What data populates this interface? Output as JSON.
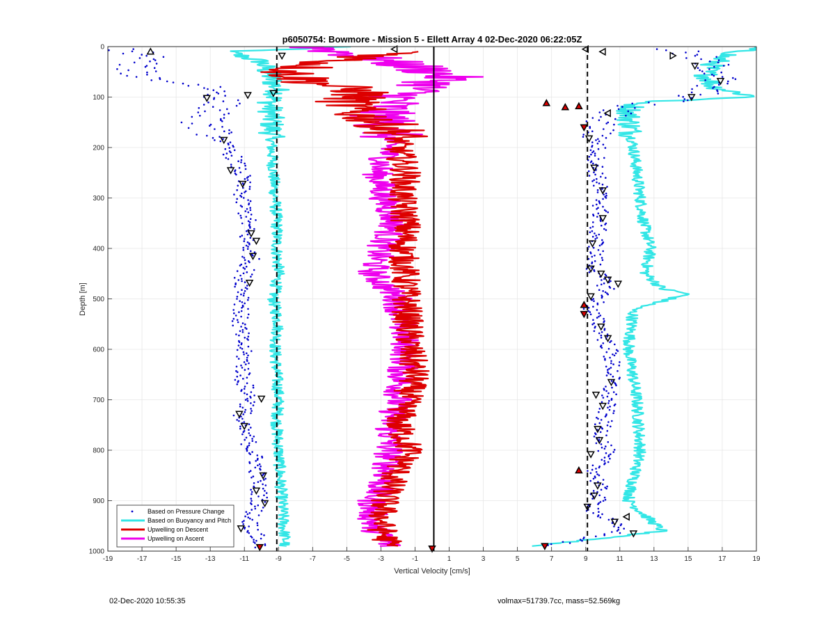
{
  "colors": {
    "pressure": "#0000cc",
    "buoyancy": "#33e6e6",
    "descent": "#dd0000",
    "ascent": "#ee00ee",
    "grid": "#e6e6e6",
    "axis": "#262626"
  },
  "footer": {
    "left": "02-Dec-2020 10:55:35",
    "right": "volmax=51739.7cc, mass=52.569kg"
  },
  "chart_data": {
    "type": "scatter",
    "title": "p6050754: Bowmore - Mission 5 - Ellett Array 4 02-Dec-2020 06:22:05Z",
    "xlabel": "Vertical Velocity [cm/s]",
    "ylabel": "Depth [m]",
    "xlim": [
      -19,
      19
    ],
    "ylim": [
      0,
      1000
    ],
    "y_reversed": true,
    "grid": true,
    "xticks": [
      -19,
      -17,
      -15,
      -13,
      -11,
      -9,
      -7,
      -5,
      -3,
      -1,
      1,
      3,
      5,
      7,
      9,
      11,
      13,
      15,
      17,
      19
    ],
    "xtick_labels": [
      "-19",
      "-17",
      "-15",
      "-13",
      "-11",
      "-9",
      "-7",
      "-5",
      "-3",
      "-1",
      "1",
      "3",
      "5",
      "7",
      "9",
      "11",
      "13",
      "15",
      "17",
      "19"
    ],
    "yticks": [
      0,
      100,
      200,
      300,
      400,
      500,
      600,
      700,
      800,
      900,
      1000
    ],
    "ytick_labels": [
      "0",
      "100",
      "200",
      "300",
      "400",
      "500",
      "600",
      "700",
      "800",
      "900",
      "1000"
    ],
    "legend": {
      "position": "bottom-left",
      "entries": [
        "Based on Pressure Change",
        "Based on Buoyancy and Pitch",
        "Upwelling on Descent",
        "Upwelling on Ascent"
      ]
    },
    "reference_lines": [
      {
        "x": -9.1,
        "style": "dashed"
      },
      {
        "x": 0.1,
        "style": "solid"
      },
      {
        "x": 9.1,
        "style": "dashed"
      }
    ],
    "series": [
      {
        "name": "Based on Pressure Change",
        "style": "dots",
        "groups": [
          {
            "depth": [
              5,
              20,
              40,
              60,
              80,
              100,
              120,
              150,
              180,
              220,
              260,
              300,
              340,
              380,
              420,
              460,
              500,
              540,
              580,
              620,
              660,
              700,
              740,
              780,
              820,
              860,
              900,
              940,
              980,
              995
            ],
            "velocity": [
              -18,
              -16.5,
              -17.5,
              -17,
              -13,
              -12.2,
              -12.5,
              -13.5,
              -12.5,
              -11.6,
              -11.1,
              -11.2,
              -10.8,
              -10.9,
              -10.6,
              -11.1,
              -11.0,
              -11.3,
              -11.2,
              -11.0,
              -11.1,
              -10.6,
              -11.3,
              -10.8,
              -10.3,
              -10.2,
              -10.1,
              -10.7,
              -10.2,
              -10.0
            ]
          },
          {
            "depth": [
              5,
              20,
              40,
              60,
              80,
              100,
              120,
              140,
              160,
              200,
              240,
              280,
              320,
              360,
              400,
              440,
              480,
              520,
              560,
              600,
              640,
              680,
              720,
              760,
              800,
              840,
              880,
              920,
              960,
              990
            ],
            "velocity": [
              14,
              15.5,
              16.5,
              17,
              16,
              15.5,
              11,
              10.3,
              9.8,
              9.7,
              9.6,
              9.8,
              9.9,
              9.7,
              9.6,
              9.5,
              10.3,
              9.3,
              9.9,
              10.4,
              10.6,
              10.4,
              10.2,
              9.9,
              10.2,
              9.6,
              9.8,
              9.5,
              11.2,
              6.8
            ]
          }
        ]
      },
      {
        "name": "Based on Buoyancy and Pitch",
        "style": "line",
        "groups": [
          {
            "depth": [
              0,
              10,
              30,
              60,
              90,
              110,
              150,
              200,
              250,
              300,
              350,
              400,
              450,
              500,
              550,
              600,
              650,
              700,
              750,
              800,
              850,
              900,
              950,
              985,
              990
            ],
            "velocity": [
              -5,
              -12,
              -10,
              -9.5,
              -9,
              -9.5,
              -9.4,
              -9.4,
              -9.3,
              -9.2,
              -9.1,
              -9.1,
              -9.0,
              -9.3,
              -9.0,
              -9.2,
              -9.1,
              -9.0,
              -9.1,
              -9.0,
              -8.9,
              -8.8,
              -8.7,
              -8.6,
              -8.8
            ]
          },
          {
            "depth": [
              0,
              20,
              50,
              80,
              100,
              110,
              130,
              200,
              250,
              300,
              350,
              400,
              450,
              480,
              490,
              520,
              600,
              700,
              800,
              900,
              930,
              960,
              990
            ],
            "velocity": [
              19,
              17,
              16,
              16.5,
              19,
              12,
              11.5,
              11.8,
              12.0,
              12.2,
              12.4,
              12.8,
              12.5,
              13.5,
              15.0,
              11.8,
              11.5,
              12.0,
              12.2,
              11.5,
              12.5,
              13.5,
              6.0
            ]
          }
        ]
      },
      {
        "name": "Upwelling on Descent",
        "style": "line",
        "groups": [
          {
            "depth": [
              10,
              30,
              50,
              70,
              90,
              110,
              130,
              150,
              170,
              200,
              250,
              300,
              350,
              400,
              450,
              500,
              550,
              600,
              650,
              700,
              750,
              800,
              850,
              900,
              950,
              990
            ],
            "velocity": [
              -1,
              -6,
              -8.5,
              -7,
              -4,
              -5,
              -4.5,
              -3,
              -2,
              -2,
              -1.5,
              -1.8,
              -1.5,
              -1.7,
              -1.6,
              -1.5,
              -1.4,
              -1.3,
              -1.0,
              -1.5,
              -2.0,
              -1.3,
              -2.2,
              -2.8,
              -3.0,
              -2.5
            ]
          }
        ]
      },
      {
        "name": "Upwelling on Ascent",
        "style": "line",
        "groups": [
          {
            "depth": [
              0,
              20,
              40,
              60,
              80,
              100,
              130,
              170,
              200,
              250,
              300,
              350,
              400,
              450,
              500,
              550,
              600,
              650,
              700,
              750,
              800,
              850,
              900,
              950,
              990
            ],
            "velocity": [
              -7,
              -4,
              -1,
              1.0,
              -0.5,
              -2,
              -3,
              -2.5,
              -2.5,
              -3.2,
              -2.8,
              -2.2,
              -3.0,
              -3.5,
              -2.0,
              -1.8,
              -1.5,
              -1.8,
              -2.0,
              -2.5,
              -2.5,
              -2.7,
              -3.5,
              -3.5,
              -2.5
            ]
          }
        ]
      }
    ],
    "markers": [
      {
        "depth": 10,
        "velocity": -16.5,
        "shape": "tri-up",
        "fill": "none"
      },
      {
        "depth": 18,
        "velocity": -8.8,
        "shape": "tri-down",
        "fill": "none"
      },
      {
        "depth": 5,
        "velocity": -2.2,
        "shape": "tri-left",
        "fill": "none"
      },
      {
        "depth": 5,
        "velocity": 9.0,
        "shape": "tri-left",
        "fill": "none"
      },
      {
        "depth": 10,
        "velocity": 10.0,
        "shape": "tri-left",
        "fill": "none"
      },
      {
        "depth": 18,
        "velocity": 14.1,
        "shape": "tri-right",
        "fill": "none"
      },
      {
        "depth": 38,
        "velocity": 15.4,
        "shape": "tri-down",
        "fill": "none"
      },
      {
        "depth": 68,
        "velocity": 16.9,
        "shape": "tri-down",
        "fill": "none"
      },
      {
        "depth": 100,
        "velocity": 15.2,
        "shape": "tri-down",
        "fill": "none"
      },
      {
        "depth": 92,
        "velocity": -9.3,
        "shape": "tri-down",
        "fill": "none"
      },
      {
        "depth": 96,
        "velocity": -10.8,
        "shape": "tri-down",
        "fill": "none"
      },
      {
        "depth": 102,
        "velocity": -13.2,
        "shape": "tri-down",
        "fill": "none"
      },
      {
        "depth": 112,
        "velocity": 6.7,
        "shape": "tri-up",
        "fill": "#dd0000"
      },
      {
        "depth": 120,
        "velocity": 7.8,
        "shape": "tri-up",
        "fill": "#dd0000"
      },
      {
        "depth": 118,
        "velocity": 8.6,
        "shape": "tri-up",
        "fill": "#dd0000"
      },
      {
        "depth": 132,
        "velocity": 10.3,
        "shape": "tri-left",
        "fill": "none"
      },
      {
        "depth": 160,
        "velocity": 8.9,
        "shape": "tri-down",
        "fill": "#dd0000"
      },
      {
        "depth": 182,
        "velocity": 9.2,
        "shape": "tri-down",
        "fill": "none"
      },
      {
        "depth": 185,
        "velocity": -12.2,
        "shape": "tri-down",
        "fill": "none"
      },
      {
        "depth": 245,
        "velocity": -11.8,
        "shape": "tri-down",
        "fill": "none"
      },
      {
        "depth": 240,
        "velocity": 9.5,
        "shape": "tri-down",
        "fill": "none"
      },
      {
        "depth": 272,
        "velocity": -11.1,
        "shape": "tri-down",
        "fill": "none"
      },
      {
        "depth": 285,
        "velocity": 10.0,
        "shape": "tri-down",
        "fill": "none"
      },
      {
        "depth": 340,
        "velocity": 10.0,
        "shape": "tri-down",
        "fill": "none"
      },
      {
        "depth": 370,
        "velocity": -10.6,
        "shape": "tri-down",
        "fill": "none"
      },
      {
        "depth": 385,
        "velocity": -10.3,
        "shape": "tri-down",
        "fill": "none"
      },
      {
        "depth": 390,
        "velocity": 9.4,
        "shape": "tri-down",
        "fill": "none"
      },
      {
        "depth": 415,
        "velocity": -10.5,
        "shape": "tri-down",
        "fill": "none"
      },
      {
        "depth": 440,
        "velocity": 9.3,
        "shape": "tri-down",
        "fill": "none"
      },
      {
        "depth": 450,
        "velocity": 9.9,
        "shape": "tri-down",
        "fill": "none"
      },
      {
        "depth": 462,
        "velocity": 10.3,
        "shape": "tri-down",
        "fill": "none"
      },
      {
        "depth": 470,
        "velocity": 10.9,
        "shape": "tri-down",
        "fill": "none"
      },
      {
        "depth": 468,
        "velocity": -10.7,
        "shape": "tri-down",
        "fill": "none"
      },
      {
        "depth": 495,
        "velocity": 9.3,
        "shape": "tri-down",
        "fill": "none"
      },
      {
        "depth": 512,
        "velocity": 8.9,
        "shape": "tri-up",
        "fill": "#dd0000"
      },
      {
        "depth": 530,
        "velocity": 8.9,
        "shape": "tri-down",
        "fill": "#dd0000"
      },
      {
        "depth": 555,
        "velocity": 9.9,
        "shape": "tri-down",
        "fill": "none"
      },
      {
        "depth": 578,
        "velocity": 10.3,
        "shape": "tri-down",
        "fill": "none"
      },
      {
        "depth": 665,
        "velocity": 10.5,
        "shape": "tri-down",
        "fill": "none"
      },
      {
        "depth": 690,
        "velocity": 9.6,
        "shape": "tri-down",
        "fill": "none"
      },
      {
        "depth": 698,
        "velocity": -10.0,
        "shape": "tri-down",
        "fill": "none"
      },
      {
        "depth": 712,
        "velocity": 10.0,
        "shape": "tri-down",
        "fill": "none"
      },
      {
        "depth": 728,
        "velocity": -11.3,
        "shape": "tri-down",
        "fill": "none"
      },
      {
        "depth": 752,
        "velocity": -11.0,
        "shape": "tri-down",
        "fill": "none"
      },
      {
        "depth": 758,
        "velocity": 9.7,
        "shape": "tri-down",
        "fill": "none"
      },
      {
        "depth": 780,
        "velocity": 9.8,
        "shape": "tri-down",
        "fill": "none"
      },
      {
        "depth": 808,
        "velocity": 9.3,
        "shape": "tri-down",
        "fill": "none"
      },
      {
        "depth": 840,
        "velocity": 8.6,
        "shape": "tri-up",
        "fill": "#dd0000"
      },
      {
        "depth": 850,
        "velocity": -9.9,
        "shape": "tri-down",
        "fill": "none"
      },
      {
        "depth": 870,
        "velocity": 9.7,
        "shape": "tri-down",
        "fill": "none"
      },
      {
        "depth": 880,
        "velocity": -10.3,
        "shape": "tri-down",
        "fill": "none"
      },
      {
        "depth": 890,
        "velocity": 9.5,
        "shape": "tri-down",
        "fill": "none"
      },
      {
        "depth": 905,
        "velocity": -9.8,
        "shape": "tri-down",
        "fill": "none"
      },
      {
        "depth": 912,
        "velocity": 9.1,
        "shape": "tri-down",
        "fill": "none"
      },
      {
        "depth": 932,
        "velocity": 11.4,
        "shape": "tri-left",
        "fill": "none"
      },
      {
        "depth": 942,
        "velocity": 10.7,
        "shape": "tri-down",
        "fill": "none"
      },
      {
        "depth": 955,
        "velocity": -11.2,
        "shape": "tri-down",
        "fill": "none"
      },
      {
        "depth": 965,
        "velocity": 11.8,
        "shape": "tri-down",
        "fill": "none"
      },
      {
        "depth": 992,
        "velocity": -10.1,
        "shape": "tri-down",
        "fill": "#dd0000"
      },
      {
        "depth": 990,
        "velocity": 6.6,
        "shape": "tri-down",
        "fill": "#dd0000"
      },
      {
        "depth": 995,
        "velocity": 0.0,
        "shape": "tri-down",
        "fill": "#dd0000"
      }
    ]
  }
}
